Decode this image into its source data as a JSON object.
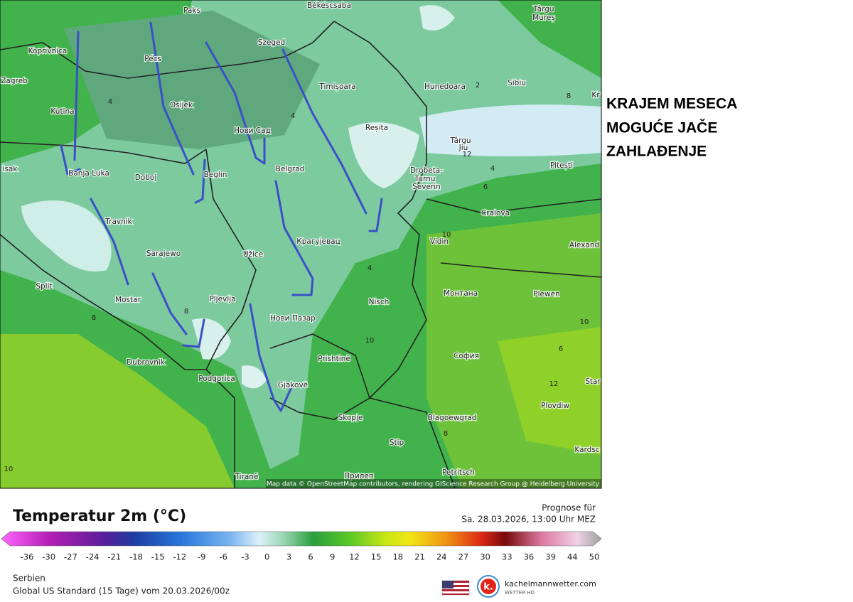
{
  "headline": [
    "KRAJEM MESECA",
    "MOGUĆE JAČE",
    "ZAHLAĐENJE"
  ],
  "map": {
    "cities": [
      "Paks",
      "Békéscsaba",
      "Târgu",
      "Mureș",
      "Koprivnica",
      "Pécs",
      "Szeged",
      "Zagreb",
      "Timișoara",
      "Hunedoara",
      "Sibiu",
      "Kr",
      "Kutina",
      "Osijek",
      "Нови Сад",
      "Reșița",
      "Târgu",
      "Jiu",
      "Pitești",
      "Banja Luka",
      "Doboj",
      "Beglin",
      "Belgrad",
      "Drobeta-",
      "Turnu",
      "Severin",
      "Craiova",
      "Travnik",
      "Sarajewo",
      "Užice",
      "Крагујевац",
      "Vidin",
      "Alexand",
      "Split",
      "Mostar",
      "Pljevlja",
      "Нови Пазар",
      "Nisch",
      "Монтана",
      "Plewen",
      "Dubrovnik",
      "Prishtinë",
      "София",
      "Podgorica",
      "Gjakovë",
      "Skopje",
      "Blagoewgrad",
      "Plovdiw",
      "Stip",
      "Kardsc",
      "Petritsch",
      "Tiranë",
      "Прилеп",
      "isak",
      "Star"
    ],
    "contours": [
      4,
      4,
      2,
      8,
      12,
      4,
      6,
      10,
      4,
      8,
      10,
      6,
      12,
      8,
      10,
      8,
      10
    ],
    "attribution": "Map data © OpenStreetMap contributors, rendering GIScience Research Group @ Heidelberg University"
  },
  "legend": {
    "title": "Temperatur 2m (°C)",
    "forecast_label": "Prognose für",
    "forecast_time": "Sa. 28.03.2026, 13:00 Uhr MEZ",
    "scale": [
      -36,
      -30,
      -27,
      -24,
      -21,
      -18,
      -15,
      -12,
      -9,
      -6,
      -3,
      0,
      3,
      6,
      9,
      12,
      15,
      18,
      21,
      24,
      27,
      30,
      33,
      36,
      39,
      44,
      50
    ],
    "region": "Serbien",
    "model": "Global US Standard (15 Tage) vom 20.03.2026/00z"
  },
  "brand": {
    "letter": "k.",
    "name": "kachelmannwetter.com",
    "tagline": "WETTER HD"
  }
}
